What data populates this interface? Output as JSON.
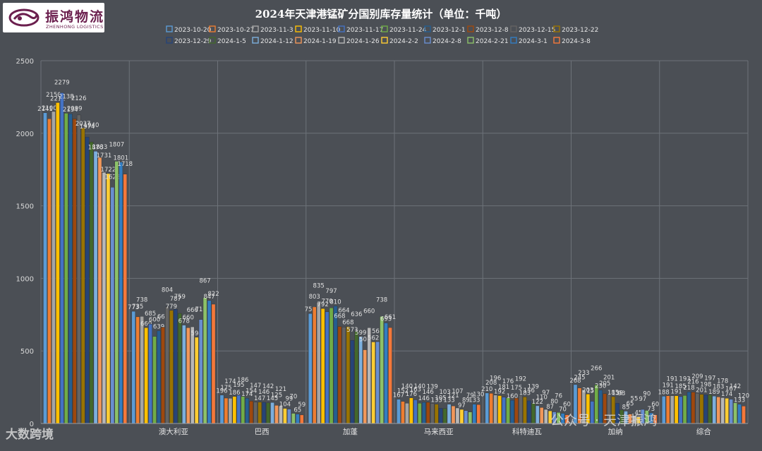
{
  "logo": {
    "name": "振鸿物流",
    "subtitle": "ZHENHONG LOGISTICS"
  },
  "watermarks": {
    "right": "公众号 · 天津振鸿",
    "left": "大数跨境"
  },
  "chart_data": {
    "type": "bar",
    "title": "2024年天津港锰矿分国别库存量统计（单位：千吨）",
    "ylim": [
      0,
      2500
    ],
    "yticks": [
      0,
      500,
      1000,
      1500,
      2000,
      2500
    ],
    "grid": true,
    "legend_position": "top",
    "categories": [
      "",
      "澳大利亚",
      "巴西",
      "加蓬",
      "马来西亚",
      "科特迪瓦",
      "加纳",
      "综合"
    ],
    "series": [
      {
        "name": "2023-10-20",
        "color": "#5b9bd5",
        "values": [
          2141,
          773,
          196,
          758,
          167,
          210,
          268,
          188
        ]
      },
      {
        "name": "2023-10-27",
        "color": "#ed7d31",
        "values": [
          2100,
          735,
          175,
          803,
          152,
          208,
          245,
          191
        ]
      },
      {
        "name": "2023-11-3",
        "color": "#a5a5a5",
        "values": [
          2150,
          738,
          174,
          835,
          140,
          196,
          233,
          191
        ]
      },
      {
        "name": "2023-11-10",
        "color": "#ffc000",
        "values": [
          2211,
          660,
          186,
          792,
          176,
          192,
          203,
          191
        ]
      },
      {
        "name": "2023-11-17",
        "color": "#4472c4",
        "values": [
          2279,
          685,
          195,
          770,
          163,
          181,
          153,
          185
        ]
      },
      {
        "name": "2023-11-24",
        "color": "#70ad47",
        "values": [
          2138,
          600,
          186,
          797,
          140,
          176,
          266,
          193
        ]
      },
      {
        "name": "2023-12-1",
        "color": "#255e91",
        "values": [
          2134,
          639,
          174,
          810,
          146,
          160,
          230,
          218
        ]
      },
      {
        "name": "2023-12-8",
        "color": "#9e480e",
        "values": [
          2099,
          663,
          154,
          668,
          146,
          175,
          205,
          216
        ]
      },
      {
        "name": "2023-12-15",
        "color": "#636363",
        "values": [
          2126,
          804,
          147,
          664,
          139,
          192,
          201,
          209
        ]
      },
      {
        "name": "2023-12-22",
        "color": "#997300",
        "values": [
          2037,
          779,
          147,
          668,
          133,
          183,
          185,
          201
        ]
      },
      {
        "name": "2023-12-29",
        "color": "#264478",
        "values": [
          1974,
          787,
          146,
          573,
          105,
          156,
          139,
          198
        ]
      },
      {
        "name": "2024-1-5",
        "color": "#43682b",
        "values": [
          1940,
          759,
          142,
          636,
          103,
          139,
          93,
          197
        ]
      },
      {
        "name": "2024-1-12",
        "color": "#7cafdd",
        "values": [
          1876,
          678,
          145,
          599,
          133,
          122,
          85,
          189
        ]
      },
      {
        "name": "2024-1-19",
        "color": "#f1975a",
        "values": [
          1833,
          660,
          125,
          508,
          121,
          110,
          65,
          183
        ]
      },
      {
        "name": "2024-1-26",
        "color": "#b7b7b7",
        "values": [
          1731,
          666,
          121,
          660,
          107,
          97,
          55,
          178
        ]
      },
      {
        "name": "2024-2-2",
        "color": "#ffcd33",
        "values": [
          1722,
          594,
          104,
          562,
          97,
          87,
          45,
          174
        ]
      },
      {
        "name": "2024-2-8",
        "color": "#698ed0",
        "values": [
          1628,
          716,
          99,
          564,
          89,
          80,
          97,
          167
        ]
      },
      {
        "name": "2024-2-21",
        "color": "#8cc168",
        "values": [
          1807,
          867,
          70,
          738,
          79,
          76,
          90,
          142
        ]
      },
      {
        "name": "2024-3-1",
        "color": "#327dc2",
        "values": [
          1801,
          847,
          65,
          693,
          133,
          70,
          73,
          133
        ]
      },
      {
        "name": "2024-3-8",
        "color": "#f4783a",
        "values": [
          1718,
          822,
          59,
          661,
          130,
          60,
          60,
          120
        ]
      }
    ]
  }
}
